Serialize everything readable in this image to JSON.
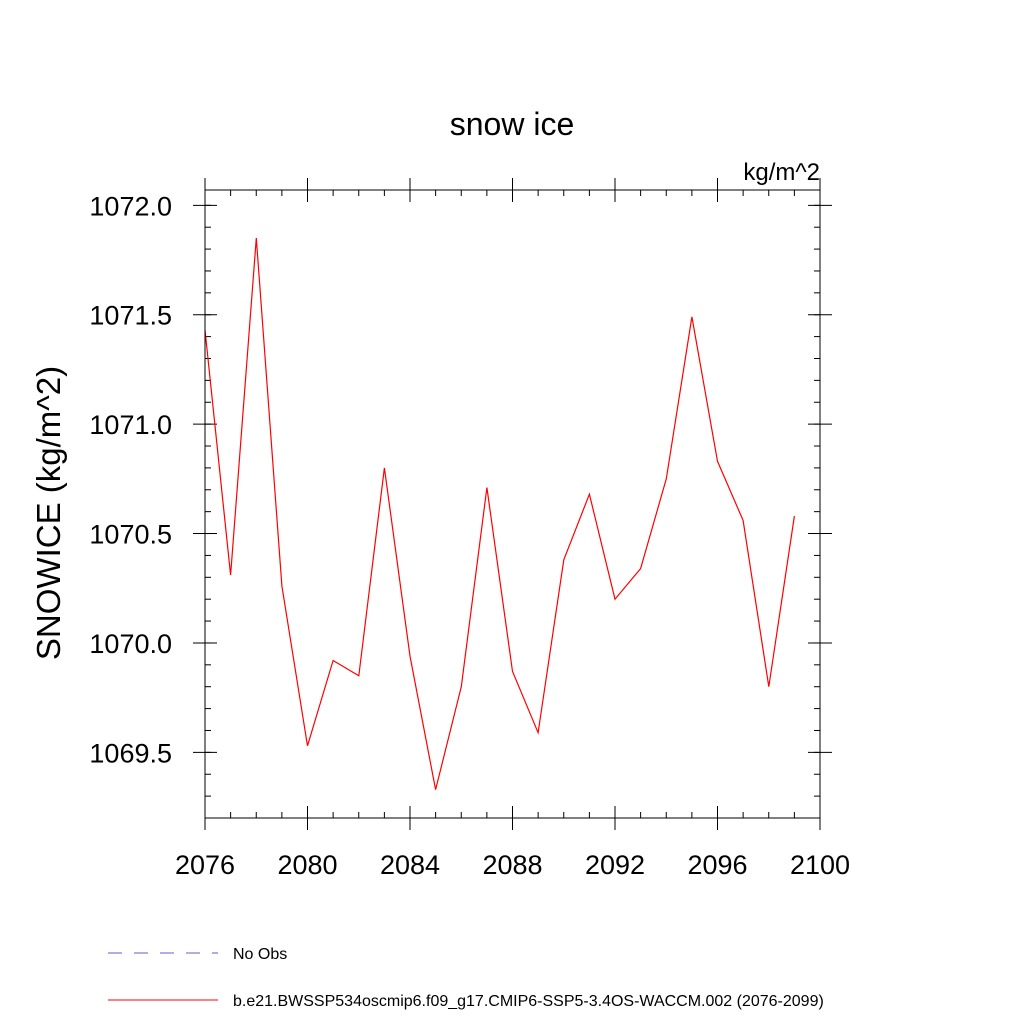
{
  "chart_data": {
    "type": "line",
    "title": "snow ice",
    "units": "kg/m^2",
    "ylabel": "SNOWICE  (kg/m^2)",
    "xlabel": "",
    "xlim": [
      2076,
      2100
    ],
    "ylim": [
      1069.2,
      1072.07
    ],
    "x_ticks": [
      2076,
      2080,
      2084,
      2088,
      2092,
      2096,
      2100
    ],
    "y_ticks": [
      1069.5,
      1070.0,
      1070.5,
      1071.0,
      1071.5,
      1072.0
    ],
    "y_tick_labels": [
      "1069.5",
      "1070.0",
      "1070.5",
      "1071.0",
      "1071.5",
      "1072.0"
    ],
    "x_minor_step": 1,
    "y_minor_step": 0.1,
    "grid": false,
    "legend_position": "bottom",
    "series": [
      {
        "name": "b.e21.BWSSP534oscmip6.f09_g17.CMIP6-SSP5-3.4OS-WACCM.002 (2076-2099)",
        "color": "#ff0000",
        "style": "solid",
        "x": [
          2076,
          2077,
          2078,
          2079,
          2080,
          2081,
          2082,
          2083,
          2084,
          2085,
          2086,
          2087,
          2088,
          2089,
          2090,
          2091,
          2092,
          2093,
          2094,
          2095,
          2096,
          2097,
          2098,
          2099
        ],
        "values": [
          1071.43,
          1070.31,
          1071.85,
          1070.26,
          1069.53,
          1069.92,
          1069.85,
          1070.8,
          1069.94,
          1069.33,
          1069.8,
          1070.71,
          1069.87,
          1069.59,
          1070.38,
          1070.68,
          1070.2,
          1070.34,
          1070.75,
          1071.49,
          1070.83,
          1070.56,
          1069.8,
          1070.58
        ]
      },
      {
        "name": "No Obs",
        "color": "#6a5acd",
        "style": "dashed",
        "x": [],
        "values": []
      }
    ]
  }
}
